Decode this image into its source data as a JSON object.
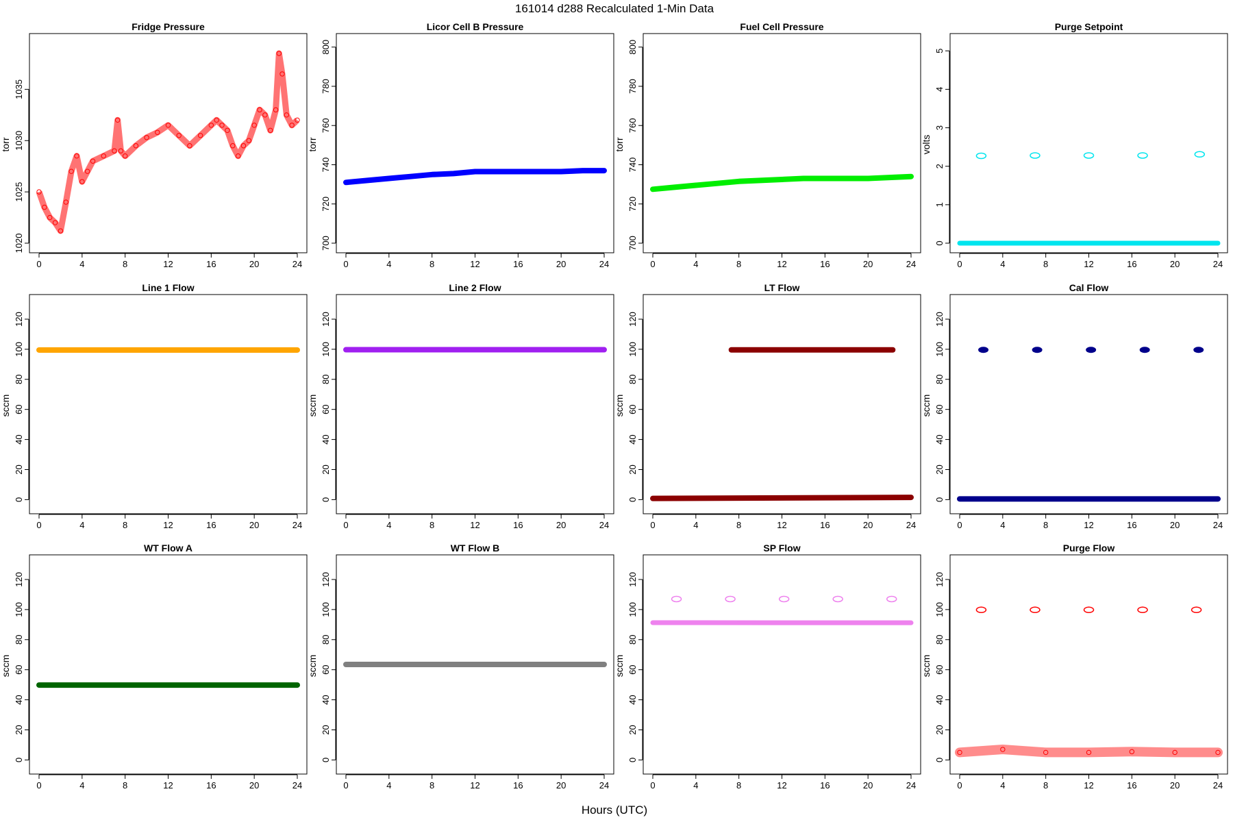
{
  "figure": {
    "title": "161014    d288    Recalculated 1-Min Data",
    "xlabel": "Hours (UTC)"
  },
  "chart_data": [
    {
      "type": "scatter",
      "title": "Fridge Pressure",
      "ylabel": "torr",
      "xlim": [
        0,
        24
      ],
      "ylim": [
        1020,
        1039.5
      ],
      "xticks": [
        0,
        4,
        8,
        12,
        16,
        20,
        24
      ],
      "yticks": [
        1020,
        1025,
        1030,
        1035
      ],
      "marker": "open-circle",
      "color": "#ff0000",
      "series": [
        {
          "x": [
            0,
            0.5,
            1,
            1.5,
            2,
            2.5,
            3,
            3.5,
            4,
            4.5,
            5,
            6,
            7,
            7.3,
            7.6,
            8,
            9,
            10,
            11,
            12,
            13,
            14,
            15,
            16,
            16.5,
            17,
            17.5,
            18,
            18.5,
            19,
            19.5,
            20,
            20.5,
            21,
            21.5,
            22,
            22.3,
            22.6,
            23,
            23.5,
            24
          ],
          "y": [
            1025,
            1023.5,
            1022.5,
            1022,
            1021.2,
            1024,
            1027,
            1028.5,
            1026,
            1027,
            1028,
            1028.5,
            1029,
            1032,
            1029,
            1028.5,
            1029.5,
            1030.3,
            1030.8,
            1031.5,
            1030.5,
            1029.5,
            1030.5,
            1031.5,
            1032,
            1031.5,
            1031,
            1029.5,
            1028.5,
            1029.5,
            1030,
            1031.5,
            1033,
            1032.5,
            1031,
            1033,
            1038.5,
            1036.5,
            1032.5,
            1031.5,
            1032
          ]
        }
      ]
    },
    {
      "type": "scatter",
      "title": "Licor Cell B Pressure",
      "ylabel": "torr",
      "xlim": [
        0,
        24
      ],
      "ylim": [
        700,
        802
      ],
      "xticks": [
        0,
        4,
        8,
        12,
        16,
        20,
        24
      ],
      "yticks": [
        700,
        720,
        740,
        760,
        780,
        800
      ],
      "marker": "filled-circle",
      "color": "#0000ff",
      "series": [
        {
          "x": [
            0,
            2,
            4,
            6,
            8,
            10,
            12,
            14,
            16,
            18,
            20,
            22,
            24
          ],
          "y": [
            731,
            732,
            733,
            734,
            735,
            735.5,
            736.5,
            736.5,
            736.5,
            736.5,
            736.5,
            737,
            737
          ]
        }
      ]
    },
    {
      "type": "scatter",
      "title": "Fuel Cell Pressure",
      "ylabel": "torr",
      "xlim": [
        0,
        24
      ],
      "ylim": [
        700,
        802
      ],
      "xticks": [
        0,
        4,
        8,
        12,
        16,
        20,
        24
      ],
      "yticks": [
        700,
        720,
        740,
        760,
        780,
        800
      ],
      "marker": "filled-circle",
      "color": "#00ee00",
      "series": [
        {
          "x": [
            0,
            2,
            4,
            6,
            8,
            10,
            12,
            14,
            16,
            18,
            20,
            22,
            24
          ],
          "y": [
            727.5,
            728.5,
            729.5,
            730.5,
            731.5,
            732,
            732.5,
            733,
            733,
            733,
            733,
            733.5,
            734
          ]
        }
      ]
    },
    {
      "type": "scatter",
      "title": "Purge Setpoint",
      "ylabel": "volts",
      "xlim": [
        0,
        24
      ],
      "ylim": [
        0,
        5.2
      ],
      "xticks": [
        0,
        4,
        8,
        12,
        16,
        20,
        24
      ],
      "yticks": [
        0,
        1,
        2,
        3,
        4,
        5
      ],
      "marker": "open-circle",
      "color": "#00e5ee",
      "series": [
        {
          "x": [
            0,
            24
          ],
          "y": [
            0,
            0
          ]
        },
        {
          "x": [
            2,
            7,
            12,
            17,
            22.3
          ],
          "y": [
            2.27,
            2.28,
            2.28,
            2.28,
            2.31
          ]
        }
      ]
    },
    {
      "type": "scatter",
      "title": "Line 1 Flow",
      "ylabel": "sccm",
      "xlim": [
        0,
        24
      ],
      "ylim": [
        -3,
        130
      ],
      "xticks": [
        0,
        4,
        8,
        12,
        16,
        20,
        24
      ],
      "yticks": [
        0,
        20,
        40,
        60,
        80,
        100,
        120
      ],
      "marker": "filled-circle",
      "color": "#ffa500",
      "series": [
        {
          "x": [
            0,
            24
          ],
          "y": [
            99.5,
            99.5
          ]
        }
      ]
    },
    {
      "type": "scatter",
      "title": "Line 2 Flow",
      "ylabel": "sccm",
      "xlim": [
        0,
        24
      ],
      "ylim": [
        -3,
        130
      ],
      "xticks": [
        0,
        4,
        8,
        12,
        16,
        20,
        24
      ],
      "yticks": [
        0,
        20,
        40,
        60,
        80,
        100,
        120
      ],
      "marker": "filled-circle",
      "color": "#a020f0",
      "series": [
        {
          "x": [
            0,
            24
          ],
          "y": [
            99.7,
            99.7
          ]
        }
      ]
    },
    {
      "type": "scatter",
      "title": "LT Flow",
      "ylabel": "sccm",
      "xlim": [
        0,
        24
      ],
      "ylim": [
        -3,
        130
      ],
      "xticks": [
        0,
        4,
        8,
        12,
        16,
        20,
        24
      ],
      "yticks": [
        0,
        20,
        40,
        60,
        80,
        100,
        120
      ],
      "marker": "filled-circle",
      "color": "#8b0000",
      "series": [
        {
          "x": [
            0,
            24
          ],
          "y": [
            0.8,
            1.5
          ]
        },
        {
          "x": [
            7.3,
            22.3
          ],
          "y": [
            99.6,
            99.6
          ]
        }
      ]
    },
    {
      "type": "scatter",
      "title": "Cal Flow",
      "ylabel": "sccm",
      "xlim": [
        0,
        24
      ],
      "ylim": [
        -3,
        130
      ],
      "xticks": [
        0,
        4,
        8,
        12,
        16,
        20,
        24
      ],
      "yticks": [
        0,
        20,
        40,
        60,
        80,
        100,
        120
      ],
      "marker": "filled-circle",
      "color": "#00008b",
      "series": [
        {
          "x": [
            0,
            24
          ],
          "y": [
            0.5,
            0.5
          ]
        },
        {
          "x": [
            2.2,
            7.2,
            12.2,
            17.2,
            22.2
          ],
          "y": [
            99.6,
            99.6,
            99.6,
            99.6,
            99.6
          ]
        }
      ]
    },
    {
      "type": "scatter",
      "title": "WT Flow A",
      "ylabel": "sccm",
      "xlim": [
        0,
        24
      ],
      "ylim": [
        -3,
        130
      ],
      "xticks": [
        0,
        4,
        8,
        12,
        16,
        20,
        24
      ],
      "yticks": [
        0,
        20,
        40,
        60,
        80,
        100,
        120
      ],
      "marker": "filled-circle",
      "color": "#006400",
      "series": [
        {
          "x": [
            0,
            24
          ],
          "y": [
            49.8,
            49.8
          ]
        }
      ]
    },
    {
      "type": "scatter",
      "title": "WT Flow B",
      "ylabel": "sccm",
      "xlim": [
        0,
        24
      ],
      "ylim": [
        -3,
        130
      ],
      "xticks": [
        0,
        4,
        8,
        12,
        16,
        20,
        24
      ],
      "yticks": [
        0,
        20,
        40,
        60,
        80,
        100,
        120
      ],
      "marker": "filled-circle",
      "color": "#808080",
      "series": [
        {
          "x": [
            0,
            24
          ],
          "y": [
            63.5,
            63.5
          ]
        }
      ]
    },
    {
      "type": "scatter",
      "title": "SP Flow",
      "ylabel": "sccm",
      "xlim": [
        0,
        24
      ],
      "ylim": [
        -3,
        130
      ],
      "xticks": [
        0,
        4,
        8,
        12,
        16,
        20,
        24
      ],
      "yticks": [
        0,
        20,
        40,
        60,
        80,
        100,
        120
      ],
      "marker": "open-circle",
      "color": "#ee82ee",
      "series": [
        {
          "x": [
            0,
            24
          ],
          "y": [
            91.3,
            91.2
          ]
        },
        {
          "x": [
            2.2,
            7.2,
            12.2,
            17.2,
            22.2
          ],
          "y": [
            107,
            107,
            107,
            107,
            107
          ]
        }
      ]
    },
    {
      "type": "scatter",
      "title": "Purge Flow",
      "ylabel": "sccm",
      "xlim": [
        0,
        24
      ],
      "ylim": [
        -3,
        130
      ],
      "xticks": [
        0,
        4,
        8,
        12,
        16,
        20,
        24
      ],
      "yticks": [
        0,
        20,
        40,
        60,
        80,
        100,
        120
      ],
      "marker": "open-circle",
      "color": "#ff0000",
      "series": [
        {
          "x": [
            0,
            4,
            8,
            12,
            16,
            20,
            24
          ],
          "y": [
            5,
            7,
            5,
            5,
            5.5,
            5,
            5
          ]
        },
        {
          "x": [
            2,
            7,
            12,
            17,
            22
          ],
          "y": [
            99.8,
            99.8,
            99.8,
            99.8,
            99.8
          ]
        }
      ]
    }
  ]
}
